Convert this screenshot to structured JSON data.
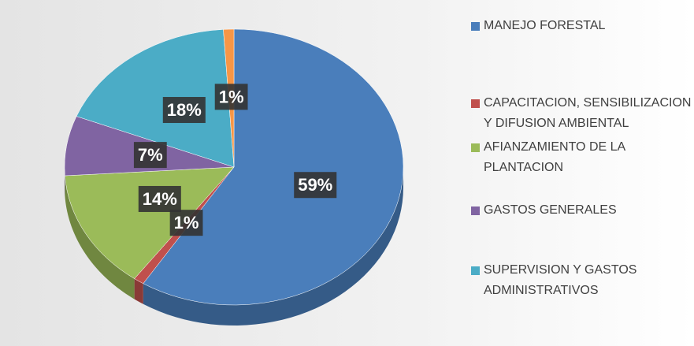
{
  "chart_data": {
    "type": "pie",
    "categories": [
      "MANEJO FORESTAL",
      "CAPACITACION, SENSIBILIZACION Y DIFUSION AMBIENTAL",
      "AFIANZAMIENTO DE LA PLANTACION",
      "GASTOS GENERALES",
      "SUPERVISION Y GASTOS ADMINISTRATIVOS",
      null
    ],
    "values": [
      59,
      1,
      14,
      7,
      18,
      1
    ],
    "value_labels": [
      "59%",
      "1%",
      "14%",
      "7%",
      "18%",
      "1%"
    ],
    "colors": [
      "#4a7ebb",
      "#c0504d",
      "#9bbb59",
      "#8064a2",
      "#4bacc6",
      "#f79646"
    ],
    "legend": "right"
  }
}
